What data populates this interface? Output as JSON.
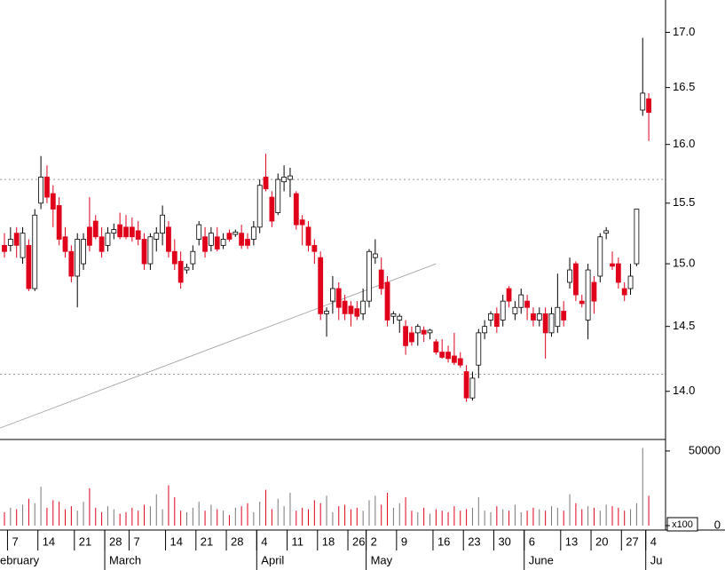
{
  "chart_data": {
    "type": "candlestick",
    "log_scale": true,
    "up_color": "#ffffff",
    "down_color": "#e0001b",
    "volume_up_color": "#777777",
    "ylim": [
      13.64,
      17.3
    ],
    "yticks": [
      {
        "value": 14,
        "label": "14.0"
      },
      {
        "value": 14.5,
        "label": "14.5"
      },
      {
        "value": 15,
        "label": "15.0"
      },
      {
        "value": 15.5,
        "label": "15.5"
      },
      {
        "value": 16,
        "label": "16.0"
      },
      {
        "value": 16.5,
        "label": "16.5"
      },
      {
        "value": 17,
        "label": "17.0"
      }
    ],
    "hlines": [
      15.7,
      14.13
    ],
    "trendline": {
      "x": [
        -1,
        71
      ],
      "y": [
        13.72,
        15.0
      ]
    },
    "volume_ylim": [
      0,
      56500
    ],
    "volume_yticks": [
      0,
      50000
    ],
    "volume_unit_label": "x100",
    "categories": [
      null,
      "7",
      null,
      null,
      null,
      null,
      "14",
      null,
      null,
      null,
      null,
      null,
      "21",
      null,
      null,
      null,
      null,
      "28",
      null,
      null,
      null,
      "7",
      null,
      null,
      null,
      null,
      null,
      "14",
      null,
      null,
      null,
      null,
      "21",
      null,
      null,
      null,
      null,
      "28",
      null,
      null,
      null,
      null,
      "4",
      null,
      null,
      null,
      null,
      "11",
      null,
      null,
      null,
      null,
      "18",
      null,
      null,
      null,
      null,
      "26",
      null,
      null,
      "2",
      null,
      null,
      null,
      null,
      "9",
      null,
      null,
      null,
      null,
      null,
      "16",
      null,
      null,
      null,
      null,
      "23",
      null,
      null,
      null,
      null,
      "30",
      null,
      null,
      null,
      null,
      "6",
      null,
      null,
      null,
      null,
      null,
      "13",
      null,
      null,
      null,
      null,
      "20",
      null,
      null,
      null,
      null,
      "27",
      null,
      null,
      null,
      "4"
    ],
    "months": [
      "ebruary",
      null,
      null,
      null,
      null,
      null,
      null,
      null,
      null,
      null,
      null,
      null,
      null,
      null,
      null,
      null,
      null,
      "March",
      null,
      null,
      null,
      null,
      null,
      null,
      null,
      null,
      null,
      null,
      null,
      null,
      null,
      null,
      null,
      null,
      null,
      null,
      null,
      null,
      null,
      null,
      null,
      null,
      "April",
      null,
      null,
      null,
      null,
      null,
      null,
      null,
      null,
      null,
      null,
      null,
      null,
      null,
      null,
      null,
      null,
      null,
      "May",
      null,
      null,
      null,
      null,
      null,
      null,
      null,
      null,
      null,
      null,
      null,
      null,
      null,
      null,
      null,
      null,
      null,
      null,
      null,
      null,
      null,
      null,
      null,
      null,
      null,
      "June",
      null,
      null,
      null,
      null,
      null,
      null,
      null,
      null,
      null,
      null,
      null,
      null,
      null,
      null,
      null,
      null,
      null,
      null,
      null,
      "Ju"
    ],
    "open": [
      15.15,
      15.15,
      15.25,
      15.05,
      15.15,
      14.8,
      15.5,
      15.72,
      15.58,
      15.48,
      15.22,
      15.1,
      14.9,
      15.0,
      15.3,
      15.35,
      15.22,
      15.15,
      15.25,
      15.32,
      15.3,
      15.3,
      15.27,
      15.2,
      15.0,
      15.2,
      15.25,
      15.3,
      15.1,
      15.02,
      14.95,
      15.0,
      15.2,
      15.22,
      15.15,
      15.22,
      15.15,
      15.25,
      15.24,
      15.25,
      15.2,
      15.2,
      15.3,
      15.72,
      15.55,
      15.42,
      15.68,
      15.7,
      15.58,
      15.36,
      15.3,
      15.15,
      15.05,
      14.6,
      14.7,
      14.8,
      14.7,
      14.66,
      14.64,
      14.6,
      14.7,
      15.05,
      14.95,
      14.85,
      14.58,
      14.55,
      14.5,
      14.45,
      14.45,
      14.47,
      14.45,
      14.38,
      14.3,
      14.3,
      14.27,
      14.25,
      14.15,
      13.95,
      14.2,
      14.45,
      14.55,
      14.6,
      14.55,
      14.8,
      14.6,
      14.65,
      14.7,
      14.6,
      14.55,
      14.6,
      14.45,
      14.5,
      14.62,
      14.85,
      15.0,
      14.7,
      14.55,
      14.85,
      14.9,
      15.25,
      15.0,
      15.0,
      14.8,
      14.8,
      15.0,
      16.3,
      16.4
    ],
    "high": [
      15.25,
      15.3,
      15.3,
      15.3,
      15.2,
      15.45,
      15.9,
      15.82,
      15.65,
      15.55,
      15.3,
      15.15,
      15.25,
      15.25,
      15.55,
      15.4,
      15.3,
      15.3,
      15.33,
      15.42,
      15.4,
      15.38,
      15.35,
      15.25,
      15.25,
      15.3,
      15.48,
      15.35,
      15.2,
      15.1,
      15.0,
      15.15,
      15.35,
      15.3,
      15.3,
      15.3,
      15.25,
      15.28,
      15.28,
      15.32,
      15.25,
      15.35,
      15.7,
      15.92,
      15.6,
      15.75,
      15.82,
      15.8,
      15.6,
      15.4,
      15.35,
      15.2,
      15.1,
      14.65,
      14.9,
      14.85,
      14.75,
      14.7,
      14.7,
      14.8,
      15.12,
      15.2,
      15.05,
      14.9,
      14.62,
      14.6,
      14.55,
      14.5,
      14.52,
      14.5,
      14.48,
      14.4,
      14.4,
      14.35,
      14.45,
      14.3,
      14.2,
      14.15,
      14.48,
      14.55,
      14.62,
      14.65,
      14.75,
      14.82,
      14.7,
      14.8,
      14.75,
      14.65,
      14.65,
      14.65,
      14.65,
      14.92,
      14.7,
      15.05,
      15.02,
      14.75,
      15.0,
      14.9,
      15.25,
      15.3,
      15.1,
      15.05,
      14.85,
      15.0,
      15.45,
      16.95,
      16.45
    ],
    "low": [
      15.05,
      15.1,
      15.05,
      15.0,
      14.78,
      14.78,
      15.45,
      15.5,
      15.3,
      15.15,
      15.05,
      14.85,
      14.65,
      14.95,
      15.1,
      15.2,
      15.05,
      15.1,
      15.2,
      15.2,
      15.2,
      15.18,
      15.15,
      14.95,
      14.95,
      15.1,
      15.15,
      15.05,
      14.95,
      14.8,
      14.92,
      14.95,
      15.15,
      15.05,
      15.1,
      15.1,
      15.12,
      15.18,
      15.22,
      15.12,
      15.12,
      15.15,
      15.25,
      15.6,
      15.3,
      15.4,
      15.6,
      15.55,
      15.28,
      15.15,
      15.1,
      15.0,
      14.55,
      14.42,
      14.6,
      14.55,
      14.55,
      14.5,
      14.55,
      14.55,
      14.65,
      15.0,
      14.75,
      14.5,
      14.52,
      14.45,
      14.28,
      14.35,
      14.35,
      14.38,
      14.4,
      14.28,
      14.25,
      14.22,
      14.2,
      14.18,
      13.92,
      13.93,
      14.1,
      14.4,
      14.5,
      14.45,
      14.5,
      14.65,
      14.55,
      14.6,
      14.55,
      14.5,
      14.5,
      14.25,
      14.42,
      14.45,
      14.5,
      14.8,
      14.7,
      14.65,
      14.4,
      14.6,
      14.85,
      15.2,
      14.95,
      14.8,
      14.7,
      14.75,
      14.98,
      16.25,
      16.03
    ],
    "close": [
      15.1,
      15.2,
      15.15,
      15.25,
      14.8,
      15.4,
      15.72,
      15.55,
      15.45,
      15.2,
      15.1,
      14.9,
      15.2,
      15.2,
      15.15,
      15.22,
      15.1,
      15.25,
      15.28,
      15.22,
      15.22,
      15.22,
      15.2,
      15.0,
      15.22,
      15.25,
      15.4,
      15.1,
      15.0,
      14.85,
      14.97,
      15.1,
      15.32,
      15.1,
      15.25,
      15.12,
      15.2,
      15.2,
      15.26,
      15.15,
      15.15,
      15.3,
      15.65,
      15.62,
      15.35,
      15.7,
      15.72,
      15.73,
      15.32,
      15.32,
      15.15,
      15.1,
      14.6,
      14.62,
      14.8,
      14.65,
      14.6,
      14.6,
      14.58,
      14.7,
      15.1,
      15.08,
      14.8,
      14.55,
      14.6,
      14.58,
      14.35,
      14.38,
      14.5,
      14.44,
      14.47,
      14.3,
      14.26,
      14.25,
      14.22,
      14.2,
      13.95,
      14.1,
      14.45,
      14.5,
      14.6,
      14.5,
      14.7,
      14.7,
      14.65,
      14.75,
      14.65,
      14.55,
      14.6,
      14.45,
      14.6,
      14.65,
      14.55,
      14.95,
      14.75,
      14.68,
      14.95,
      14.7,
      15.22,
      15.27,
      14.98,
      14.85,
      14.75,
      14.9,
      15.45,
      16.45,
      16.28
    ],
    "volume": [
      9000,
      12000,
      11000,
      14000,
      18000,
      15000,
      26000,
      12000,
      17000,
      16000,
      11000,
      13000,
      10000,
      16000,
      25000,
      12000,
      9000,
      13000,
      11000,
      8000,
      9000,
      12000,
      10000,
      14000,
      13000,
      21000,
      11000,
      27000,
      19000,
      10000,
      9000,
      12000,
      16000,
      10000,
      14000,
      11000,
      10000,
      7000,
      12000,
      13000,
      15000,
      9000,
      16000,
      24000,
      11000,
      18000,
      13000,
      22000,
      10000,
      12000,
      11000,
      17000,
      15000,
      20000,
      9000,
      13000,
      14000,
      11000,
      12000,
      10000,
      17000,
      20000,
      14000,
      22000,
      12000,
      15000,
      19000,
      10000,
      9000,
      12000,
      8000,
      11000,
      10000,
      9000,
      13000,
      10000,
      11000,
      12000,
      19000,
      10000,
      9000,
      13000,
      11000,
      10000,
      14000,
      9000,
      10000,
      12000,
      11000,
      10000,
      13000,
      12000,
      10000,
      21000,
      15000,
      11000,
      13000,
      12000,
      10000,
      14000,
      13000,
      12000,
      10000,
      11000,
      15000,
      52000,
      20000
    ]
  }
}
